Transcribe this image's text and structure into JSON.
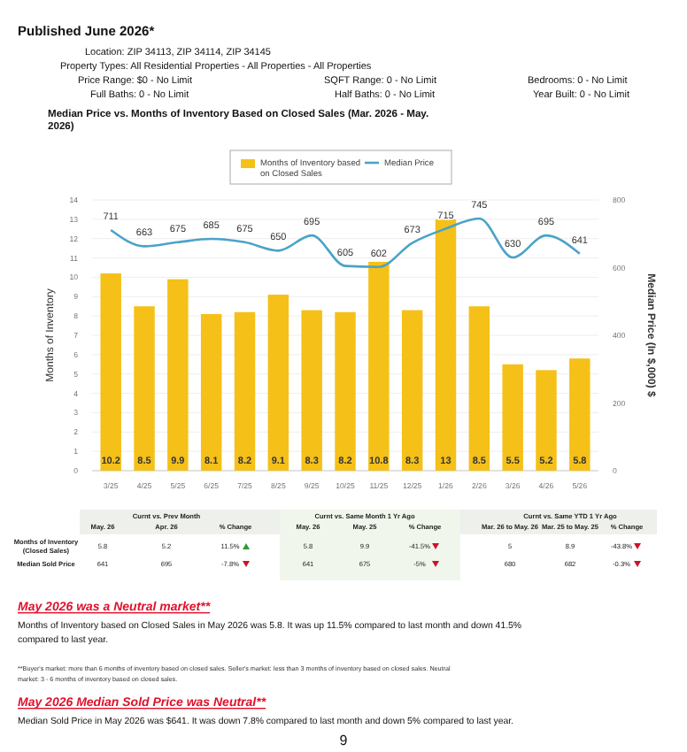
{
  "chart_data": {
    "type": "bar",
    "title": "Median Price vs. Months of Inventory Based on Closed Sales (Mar. 2026 - May. 2026)",
    "ylabel": "Months of Inventory",
    "y2label": "Median Price (In $,000) $",
    "categories": [
      "3/25",
      "4/25",
      "5/25",
      "6/25",
      "7/25",
      "8/25",
      "9/25",
      "10/25",
      "11/25",
      "12/25",
      "1/26",
      "2/26",
      "3/26",
      "4/26",
      "5/26"
    ],
    "series": [
      {
        "name": "Months of Inventory based on Closed Sales",
        "color": "#f5c018",
        "values": [
          10.2,
          8.5,
          9.9,
          8.1,
          8.2,
          9.1,
          8.3,
          8.2,
          10.8,
          8.3,
          13,
          8.5,
          5.5,
          5.2,
          5.8
        ]
      },
      {
        "name": "Median Price",
        "type": "line",
        "axis": "y2",
        "color": "#4aa3c8",
        "values": [
          711,
          663,
          675,
          685,
          675,
          650,
          695,
          605,
          602,
          673,
          715,
          745,
          630,
          695,
          641
        ]
      }
    ],
    "ylim": [
      0,
      14
    ],
    "yticks": [
      0,
      1,
      2,
      3,
      4,
      5,
      6,
      7,
      8,
      9,
      10,
      11,
      12,
      13,
      14
    ],
    "y2lim": [
      0,
      800
    ],
    "y2ticks": [
      0,
      200,
      400,
      600,
      800
    ],
    "grid": "y",
    "legend": "top",
    "data_labels": true,
    "marker": "none",
    "annotations": [
      "Published June 2026*",
      "Location: ZIP 34113, ZIP 34114, ZIP 34145",
      "Property Types: All Residential Properties - All Properties - All Properties",
      "Price Range: $0 - No Limit",
      "SQFT Range: 0 - No Limit",
      "Bedrooms: 0 - No Limit",
      "Full Baths: 0 - No Limit",
      "Half Baths: 0 - No Limit",
      "Year Built: 0 - No Limit",
      "Curnt vs. Prev Month",
      "Curnt vs. Same Month 1 Yr Ago",
      "Curnt vs. Same YTD 1 Yr Ago",
      "May. 26",
      "Apr. 26",
      "% Change",
      "May. 26",
      "May. 25",
      "% Change",
      "Mar. 26 to May. 26",
      "Mar. 25 to May. 25",
      "% Change",
      "Months of Inventory (Closed Sales)",
      "5.8",
      "5.2",
      "11.5%",
      "5.8",
      "9.9",
      "-41.5%",
      "5",
      "8.9",
      "-43.8%",
      "Median Sold Price",
      "641",
      "695",
      "-7.8%",
      "641",
      "675",
      "-5%",
      "680",
      "682",
      "-0.3%",
      "May 2026 was a Neutral market**",
      "Months of Inventory based on Closed Sales in May 2026 was 5.8. It was up 11.5% compared to last month and down 41.5% compared to last year.",
      "**Buyer's market: more than 6 months of inventory based on closed sales. Seller's market: less than 3 months of inventory based on closed sales. Neutral market: 3 - 6 months of inventory based on closed sales.",
      "May 2026 Median Sold Price was Neutral**",
      "Median Sold Price in May 2026 was $641. It was down 7.8% compared to last month and down 5% compared to last year.",
      "9"
    ]
  }
}
